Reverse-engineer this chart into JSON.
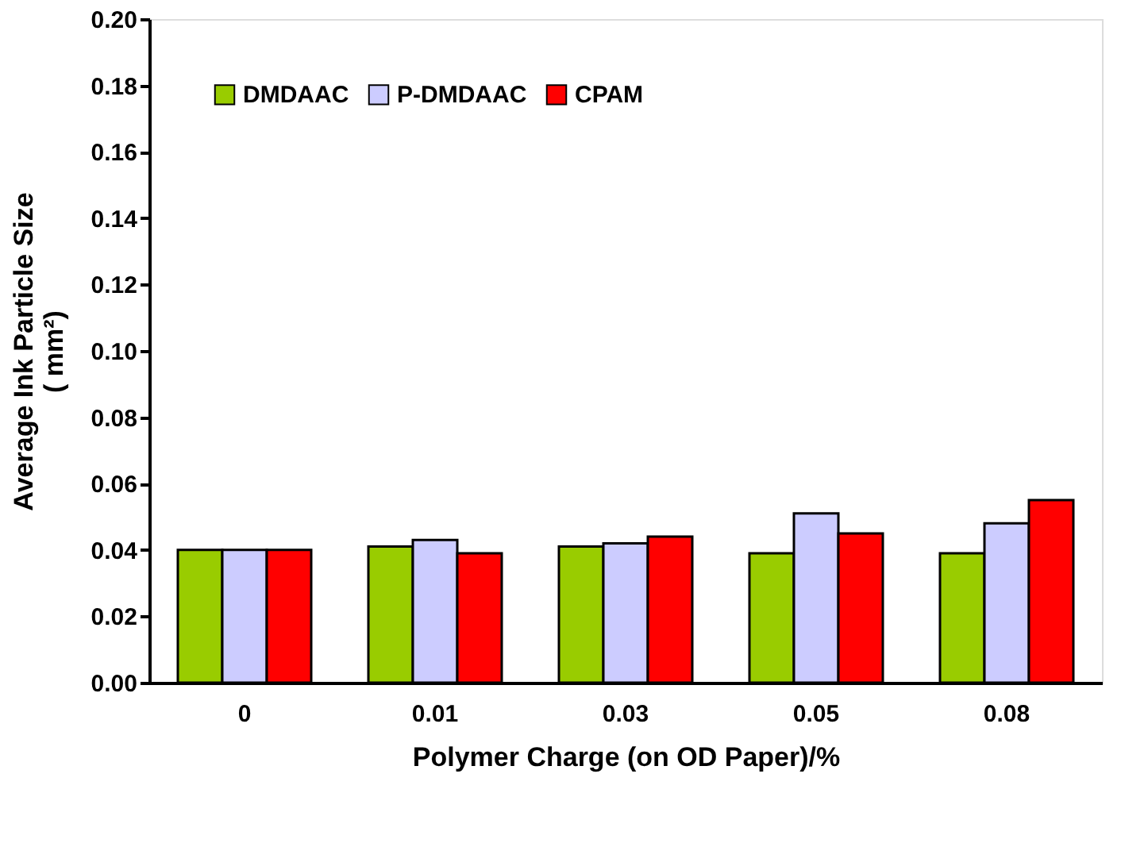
{
  "chart_data": {
    "type": "bar",
    "xlabel": "Polymer Charge (on OD Paper)/%",
    "ylabel": "Average Ink Particle Size ( mm²)",
    "categories": [
      "0",
      "0.01",
      "0.03",
      "0.05",
      "0.08"
    ],
    "series": [
      {
        "name": "DMDAAC",
        "color": "#99cc00",
        "values": [
          0.04,
          0.041,
          0.041,
          0.039,
          0.039
        ]
      },
      {
        "name": "P-DMDAAC",
        "color": "#ccccff",
        "values": [
          0.04,
          0.043,
          0.042,
          0.051,
          0.048
        ]
      },
      {
        "name": "CPAM",
        "color": "#ff0000",
        "values": [
          0.04,
          0.039,
          0.044,
          0.045,
          0.055
        ]
      }
    ],
    "ylim": [
      0,
      0.2
    ],
    "yticks": [
      {
        "value": 0,
        "label": "0.00"
      },
      0.02,
      0.04,
      0.06,
      0.08,
      {
        "value": 0.1,
        "label": "0.10"
      },
      0.12,
      0.14,
      0.16,
      0.18,
      {
        "value": 0.2,
        "label": "0.20"
      }
    ],
    "grid": false,
    "legend": "top left"
  }
}
